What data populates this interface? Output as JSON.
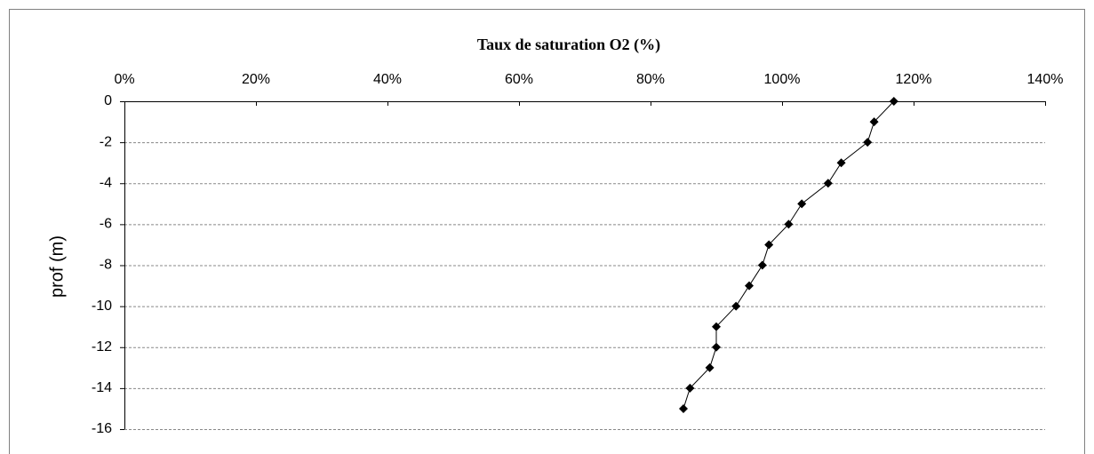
{
  "chart_data": {
    "type": "line",
    "title": "Taux de saturation O2 (%)",
    "ylabel": "prof (m)",
    "x": [
      117,
      114,
      113,
      109,
      107,
      103,
      101,
      98,
      97,
      95,
      93,
      90,
      90,
      89,
      86,
      85
    ],
    "values": [
      0,
      -1,
      -2,
      -3,
      -4,
      -5,
      -6,
      -7,
      -8,
      -9,
      -10,
      -11,
      -12,
      -13,
      -14,
      -15
    ],
    "color": "#000000",
    "xlim": [
      0,
      140
    ],
    "xticks": [
      {
        "value": 0,
        "label": "0%"
      },
      {
        "value": 20,
        "label": "20%"
      },
      {
        "value": 40,
        "label": "40%"
      },
      {
        "value": 60,
        "label": "60%"
      },
      {
        "value": 80,
        "label": "80%"
      },
      {
        "value": 100,
        "label": "100%"
      },
      {
        "value": 120,
        "label": "120%"
      },
      {
        "value": 140,
        "label": "140%"
      }
    ],
    "ylim": [
      -16,
      0
    ],
    "yticks": [
      0,
      -2,
      -4,
      -6,
      -8,
      -10,
      -12,
      -14,
      -16
    ],
    "grid": true
  }
}
